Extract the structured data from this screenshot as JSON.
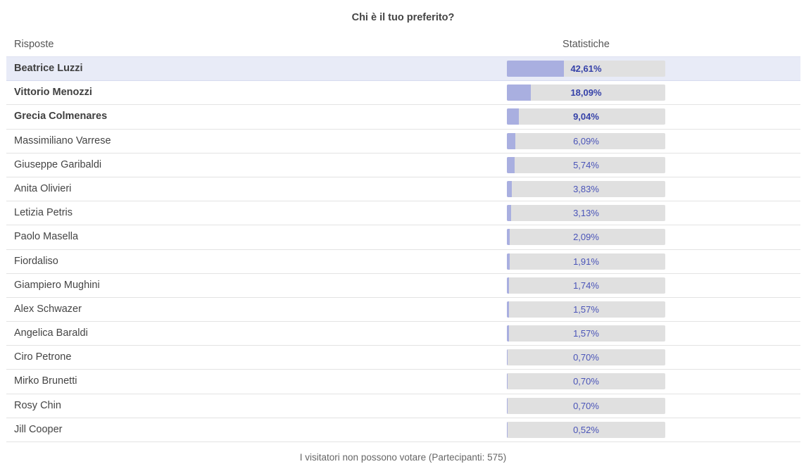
{
  "poll": {
    "title": "Chi è il tuo preferito?",
    "answers_header": "Risposte",
    "stats_header": "Statistiche",
    "footer": "I visitatori non possono votare (Partecipanti: 575)"
  },
  "colors": {
    "bar_fill": "#a9afe0",
    "bar_track": "#e0e0e0",
    "percent_text": "#4a54b8",
    "selected_row": "#e8ebf7"
  },
  "chart_data": {
    "type": "bar",
    "categories": [
      "Beatrice Luzzi",
      "Vittorio Menozzi",
      "Grecia Colmenares",
      "Massimiliano Varrese",
      "Giuseppe Garibaldi",
      "Anita Olivieri",
      "Letizia Petris",
      "Paolo Masella",
      "Fiordaliso",
      "Giampiero Mughini",
      "Alex Schwazer",
      "Angelica Baraldi",
      "Ciro Petrone",
      "Mirko Brunetti",
      "Rosy Chin",
      "Jill Cooper"
    ],
    "values": [
      42.61,
      18.09,
      9.04,
      6.09,
      5.74,
      3.83,
      3.13,
      2.09,
      1.91,
      1.74,
      1.57,
      1.57,
      0.7,
      0.7,
      0.7,
      0.52
    ],
    "labels": [
      "42,61%",
      "18,09%",
      "9,04%",
      "6,09%",
      "5,74%",
      "3,83%",
      "3,13%",
      "2,09%",
      "1,91%",
      "1,74%",
      "1,57%",
      "1,57%",
      "0,70%",
      "0,70%",
      "0,70%",
      "0,52%"
    ],
    "title": "Chi è il tuo preferito?",
    "xlabel": "",
    "ylabel": "",
    "ylim": [
      0,
      100
    ]
  },
  "rows": [
    {
      "name": "Beatrice Luzzi",
      "percent": "42,61%",
      "value": 42.61,
      "bold": true,
      "selected": true
    },
    {
      "name": "Vittorio Menozzi",
      "percent": "18,09%",
      "value": 18.09,
      "bold": true,
      "selected": false
    },
    {
      "name": "Grecia Colmenares",
      "percent": "9,04%",
      "value": 9.04,
      "bold": true,
      "selected": false
    },
    {
      "name": "Massimiliano Varrese",
      "percent": "6,09%",
      "value": 6.09,
      "bold": false,
      "selected": false
    },
    {
      "name": "Giuseppe Garibaldi",
      "percent": "5,74%",
      "value": 5.74,
      "bold": false,
      "selected": false
    },
    {
      "name": "Anita Olivieri",
      "percent": "3,83%",
      "value": 3.83,
      "bold": false,
      "selected": false
    },
    {
      "name": "Letizia Petris",
      "percent": "3,13%",
      "value": 3.13,
      "bold": false,
      "selected": false
    },
    {
      "name": "Paolo Masella",
      "percent": "2,09%",
      "value": 2.09,
      "bold": false,
      "selected": false
    },
    {
      "name": "Fiordaliso",
      "percent": "1,91%",
      "value": 1.91,
      "bold": false,
      "selected": false
    },
    {
      "name": "Giampiero Mughini",
      "percent": "1,74%",
      "value": 1.74,
      "bold": false,
      "selected": false
    },
    {
      "name": "Alex Schwazer",
      "percent": "1,57%",
      "value": 1.57,
      "bold": false,
      "selected": false
    },
    {
      "name": "Angelica Baraldi",
      "percent": "1,57%",
      "value": 1.57,
      "bold": false,
      "selected": false
    },
    {
      "name": "Ciro Petrone",
      "percent": "0,70%",
      "value": 0.7,
      "bold": false,
      "selected": false
    },
    {
      "name": "Mirko Brunetti",
      "percent": "0,70%",
      "value": 0.7,
      "bold": false,
      "selected": false
    },
    {
      "name": "Rosy Chin",
      "percent": "0,70%",
      "value": 0.7,
      "bold": false,
      "selected": false
    },
    {
      "name": "Jill Cooper",
      "percent": "0,52%",
      "value": 0.52,
      "bold": false,
      "selected": false
    }
  ]
}
